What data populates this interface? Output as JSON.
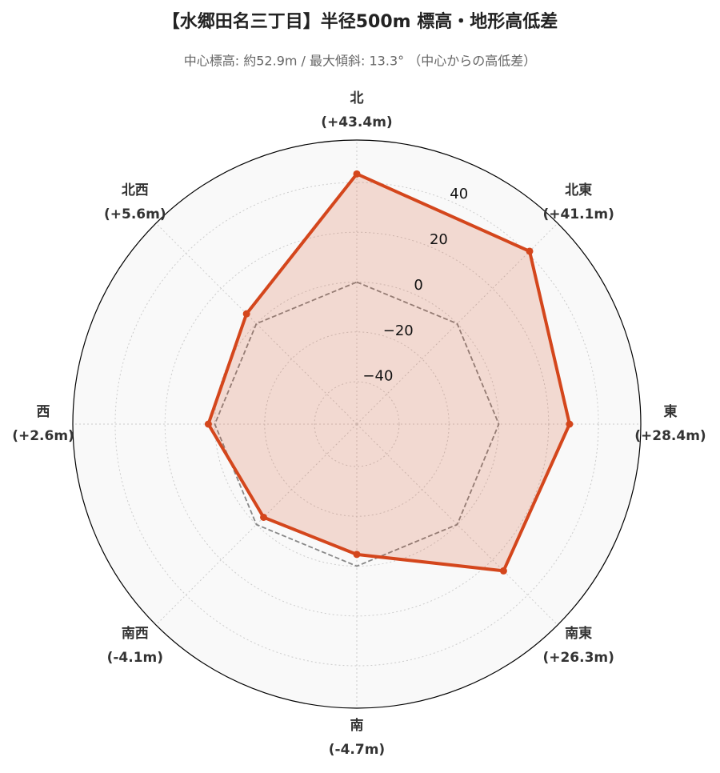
{
  "chart_data": {
    "type": "radar",
    "title": "【水郷田名三丁目】半径500m 標高・地形高低差",
    "subtitle": "中心標高: 約52.9m / 最大傾斜: 13.3° （中心からの高低差）",
    "categories": [
      "北",
      "北東",
      "東",
      "南東",
      "南",
      "南西",
      "西",
      "北西"
    ],
    "values": [
      43.4,
      41.1,
      28.4,
      26.3,
      -4.7,
      -4.1,
      2.6,
      5.6
    ],
    "value_labels": [
      "(+43.4m)",
      "(+41.1m)",
      "(+28.4m)",
      "(+26.3m)",
      "(-4.7m)",
      "(-4.1m)",
      "(+2.6m)",
      "(+5.6m)"
    ],
    "color": "#d4461c",
    "reference_line": 0,
    "ylim": [
      -57,
      57
    ],
    "yticks": [
      {
        "value": -40,
        "label": "−40"
      },
      {
        "value": -20,
        "label": "−20"
      },
      0,
      20,
      40
    ],
    "grid": true
  }
}
